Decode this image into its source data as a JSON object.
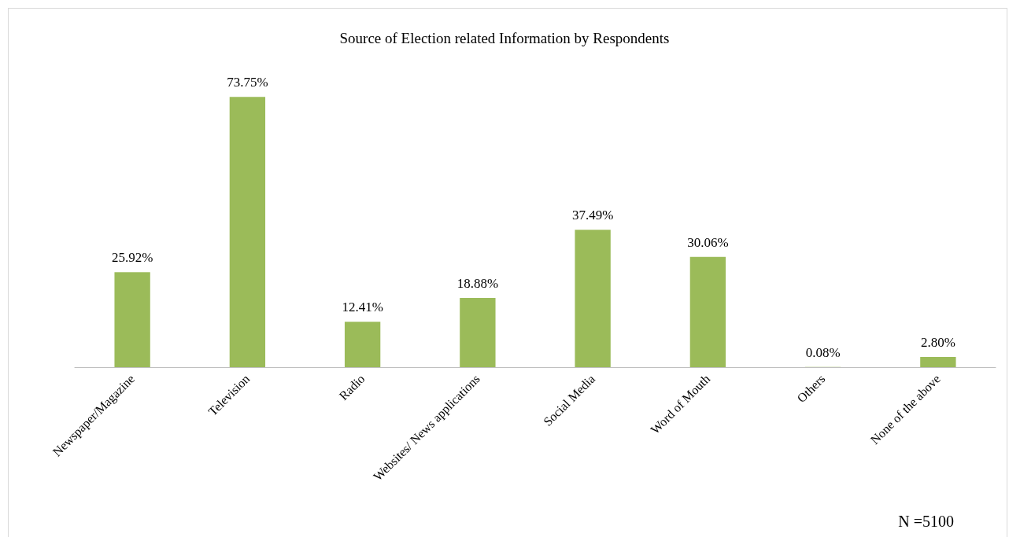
{
  "chart_data": {
    "type": "bar",
    "title": "Source of Election related Information by Respondents",
    "categories": [
      "Newspaper/Magazine",
      "Television",
      "Radio",
      "Websites/ News applications",
      "Social Media",
      "Word of Mouth",
      "Others",
      "None of the above"
    ],
    "values": [
      25.92,
      73.75,
      12.41,
      18.88,
      37.49,
      30.06,
      0.08,
      2.8
    ],
    "value_labels": [
      "25.92%",
      "73.75%",
      "12.41%",
      "18.88%",
      "37.49%",
      "30.06%",
      "0.08%",
      "2.80%"
    ],
    "color": "#9bbb59",
    "grid": false,
    "annotations": [
      "N =5100"
    ]
  }
}
